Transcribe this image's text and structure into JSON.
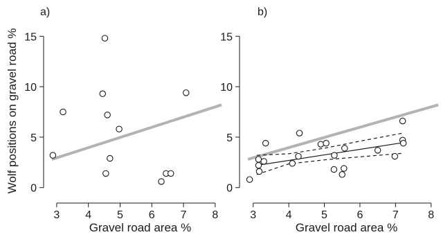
{
  "chart_data": [
    {
      "type": "scatter",
      "panel_label": "a)",
      "xlabel": "Gravel road area %",
      "ylabel": "Wolf positions on gravel road %",
      "xlim": [
        2.85,
        8.2
      ],
      "ylim": [
        -0.5,
        15.5
      ],
      "xticks": [
        "3",
        "4",
        "5",
        "6",
        "7",
        "8"
      ],
      "yticks": [
        "0",
        "5",
        "10",
        "15"
      ],
      "points": [
        {
          "x": 2.88,
          "y": 3.2
        },
        {
          "x": 3.2,
          "y": 7.5
        },
        {
          "x": 4.45,
          "y": 9.3
        },
        {
          "x": 4.52,
          "y": 14.8
        },
        {
          "x": 4.55,
          "y": 1.4
        },
        {
          "x": 4.6,
          "y": 7.2
        },
        {
          "x": 4.68,
          "y": 2.9
        },
        {
          "x": 4.97,
          "y": 5.8
        },
        {
          "x": 6.3,
          "y": 0.6
        },
        {
          "x": 6.45,
          "y": 1.4
        },
        {
          "x": 6.6,
          "y": 1.4
        },
        {
          "x": 7.08,
          "y": 9.4
        }
      ],
      "reference_line": {
        "x": [
          2.85,
          8.2
        ],
        "y": [
          2.8,
          8.2
        ],
        "color": "#b3b3b3"
      }
    },
    {
      "type": "scatter",
      "panel_label": "b)",
      "xlabel": "Gravel road area %",
      "ylabel": "",
      "xlim": [
        2.85,
        8.2
      ],
      "ylim": [
        -0.5,
        15.5
      ],
      "xticks": [
        "3",
        "4",
        "5",
        "6",
        "7",
        "8"
      ],
      "yticks": [
        "0",
        "5",
        "10",
        "15"
      ],
      "points": [
        {
          "x": 2.9,
          "y": 0.8
        },
        {
          "x": 3.15,
          "y": 2.8
        },
        {
          "x": 3.15,
          "y": 2.2
        },
        {
          "x": 3.17,
          "y": 1.6
        },
        {
          "x": 3.3,
          "y": 2.6
        },
        {
          "x": 3.35,
          "y": 4.4
        },
        {
          "x": 4.1,
          "y": 2.4
        },
        {
          "x": 4.27,
          "y": 3.1
        },
        {
          "x": 4.3,
          "y": 5.4
        },
        {
          "x": 4.9,
          "y": 4.3
        },
        {
          "x": 5.05,
          "y": 4.4
        },
        {
          "x": 5.27,
          "y": 1.8
        },
        {
          "x": 5.28,
          "y": 3.2
        },
        {
          "x": 5.5,
          "y": 1.3
        },
        {
          "x": 5.55,
          "y": 1.9
        },
        {
          "x": 5.57,
          "y": 3.9
        },
        {
          "x": 6.5,
          "y": 3.7
        },
        {
          "x": 6.98,
          "y": 3.1
        },
        {
          "x": 7.2,
          "y": 6.6
        },
        {
          "x": 7.2,
          "y": 4.7
        },
        {
          "x": 7.22,
          "y": 4.4
        }
      ],
      "reference_line": {
        "x": [
          2.85,
          8.2
        ],
        "y": [
          2.8,
          8.2
        ],
        "color": "#b3b3b3"
      },
      "fit_line": {
        "x": [
          3.1,
          7.2
        ],
        "y": [
          2.2,
          4.45
        ]
      },
      "confidence_band": {
        "x": [
          3.1,
          4.0,
          5.0,
          6.0,
          7.2
        ],
        "upper": [
          3.2,
          3.35,
          3.9,
          4.6,
          5.4
        ],
        "lower": [
          1.3,
          2.35,
          2.75,
          3.05,
          3.4
        ]
      }
    }
  ]
}
